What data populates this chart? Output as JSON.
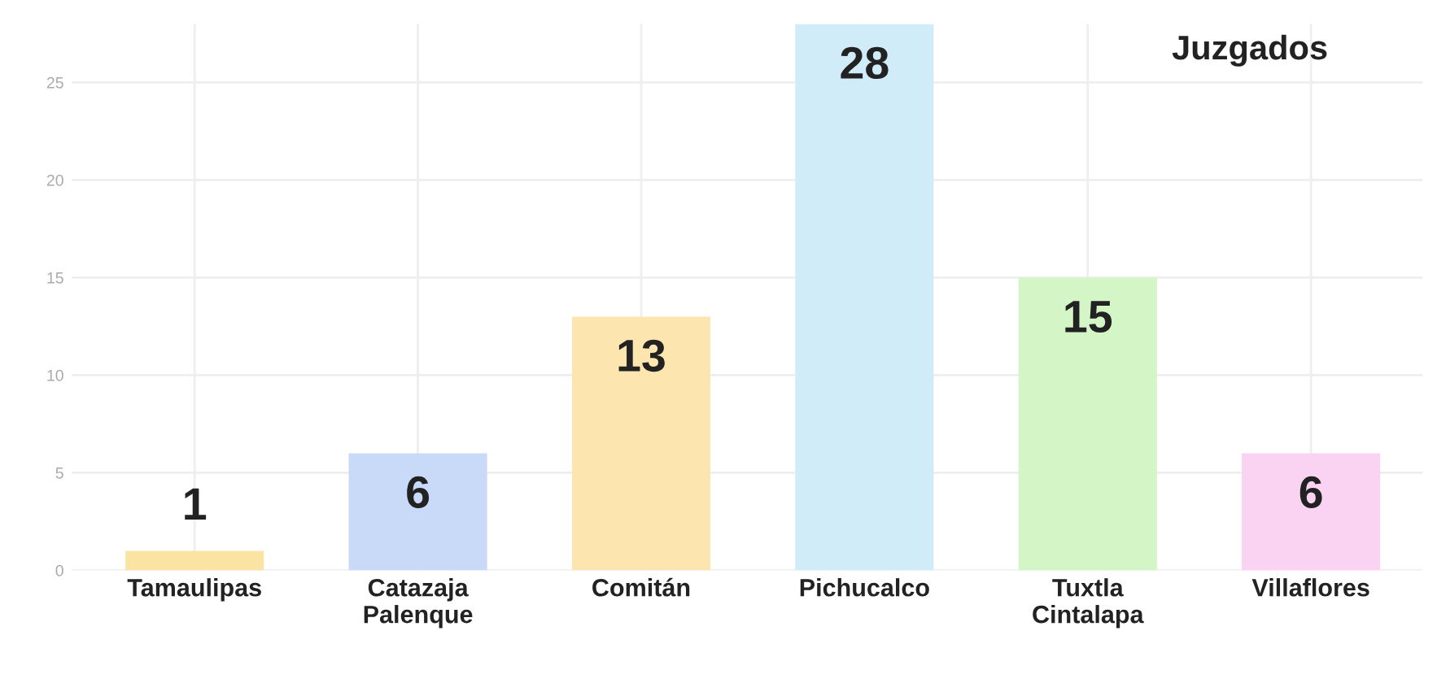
{
  "chart_data": {
    "type": "bar",
    "title": "Juzgados",
    "categories": [
      "Tamaulipas",
      "Catazaja\nPalenque",
      "Comitán",
      "Pichucalco",
      "Tuxtla\nCintalapa",
      "Villaflores"
    ],
    "values": [
      1,
      6,
      13,
      28,
      15,
      6
    ],
    "colors": [
      "#fbe3a4",
      "#c9daf8",
      "#fde5b0",
      "#d0ecf9",
      "#d4f5c6",
      "#f9d3f1"
    ],
    "ylim": [
      0,
      28
    ],
    "yticks": [
      0,
      5,
      10,
      15,
      20,
      25
    ],
    "grid": true,
    "data_labels": true
  }
}
